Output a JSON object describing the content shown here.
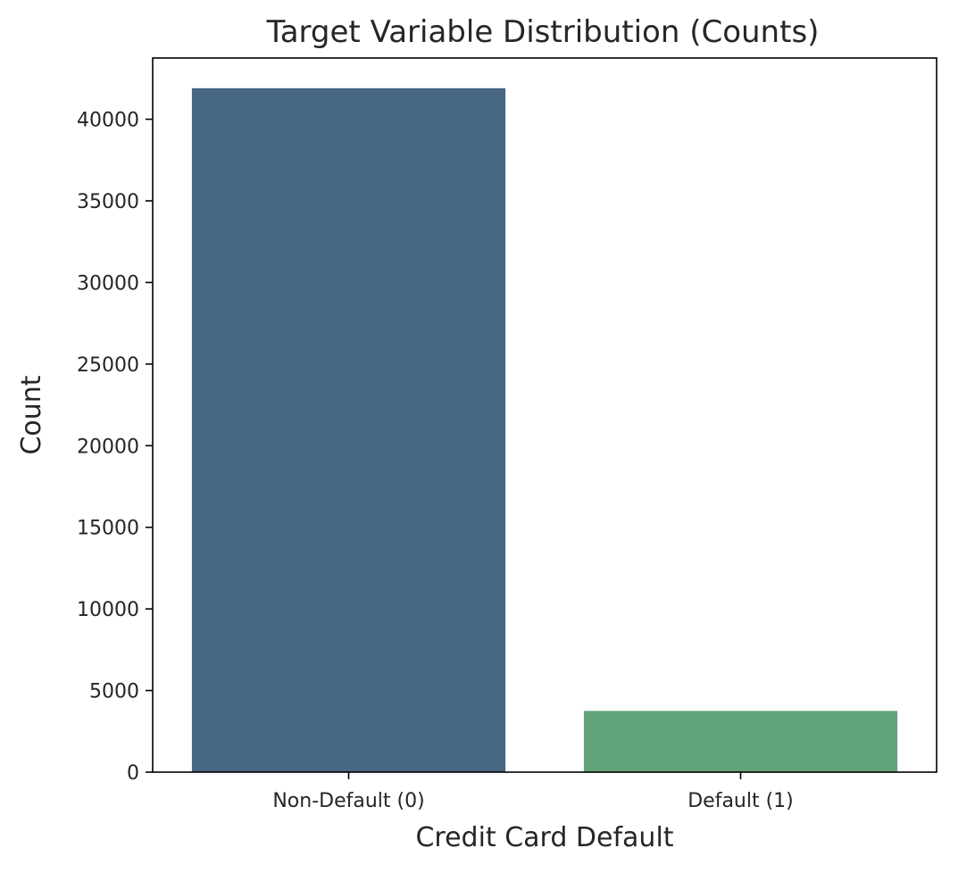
{
  "chart_data": {
    "type": "bar",
    "title": "Target Variable Distribution (Counts)",
    "xlabel": "Credit Card Default",
    "ylabel": "Count",
    "categories": [
      "Non-Default (0)",
      "Default (1)"
    ],
    "values": [
      41900,
      3750
    ],
    "colors": [
      "#476785",
      "#61a37a"
    ],
    "ylim": [
      0,
      43750
    ],
    "yticks": [
      0,
      5000,
      10000,
      15000,
      20000,
      25000,
      30000,
      35000,
      40000
    ],
    "grid": false,
    "legend": "none"
  }
}
